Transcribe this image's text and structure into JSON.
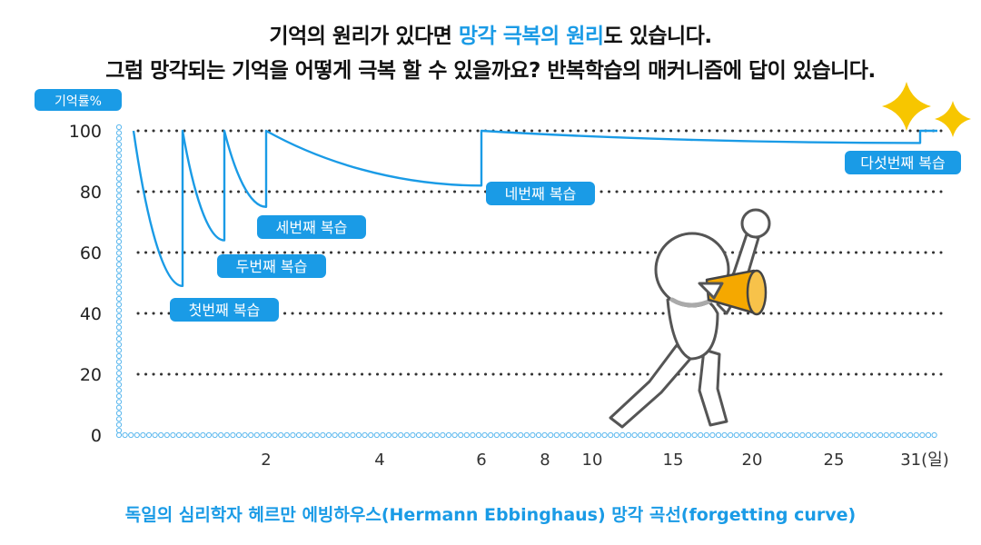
{
  "headline": {
    "line1_pre": "기억의 원리가 있다면 ",
    "line1_highlight": "망각 극복의 원리",
    "line1_post": "도 있습니다.",
    "line2": "그럼 망각되는 기억을 어떻게 극복 할 수 있을까요? 반복학습의 매커니즘에 답이 있습니다."
  },
  "caption": "독일의 심리학자 헤르만 에빙하우스(Hermann Ebbinghaus) 망각 곡선(forgetting curve)",
  "colors": {
    "accent": "#1a9be6",
    "grid": "#333333",
    "megaphone": "#f5a800",
    "sparkle": "#f7c600"
  },
  "chart_data": {
    "type": "line",
    "title": "",
    "ylabel": "기억률%",
    "yticks": [
      0,
      20,
      40,
      60,
      80,
      100
    ],
    "ylim": [
      0,
      100
    ],
    "x_ticks": [
      "2",
      "4",
      "6",
      "8",
      "10",
      "15",
      "20",
      "25",
      "31(일)"
    ],
    "grid": true,
    "series": [
      {
        "values": [
          {
            "x": 0,
            "y": 100
          },
          {
            "x": 0.75,
            "y": 49
          },
          {
            "x": 0.75,
            "y": 100
          },
          {
            "x": 1.4,
            "y": 64
          },
          {
            "x": 1.4,
            "y": 100
          },
          {
            "x": 2,
            "y": 75
          },
          {
            "x": 2,
            "y": 100
          },
          {
            "x": 6,
            "y": 82
          },
          {
            "x": 6,
            "y": 100
          },
          {
            "x": 30,
            "y": 96
          },
          {
            "x": 30,
            "y": 100
          },
          {
            "x": 31,
            "y": 100
          }
        ]
      }
    ],
    "annotations": [
      "첫번째 복습",
      "두번째 복습",
      "세번째 복습",
      "네번째 복습",
      "다섯번째 복습"
    ]
  }
}
